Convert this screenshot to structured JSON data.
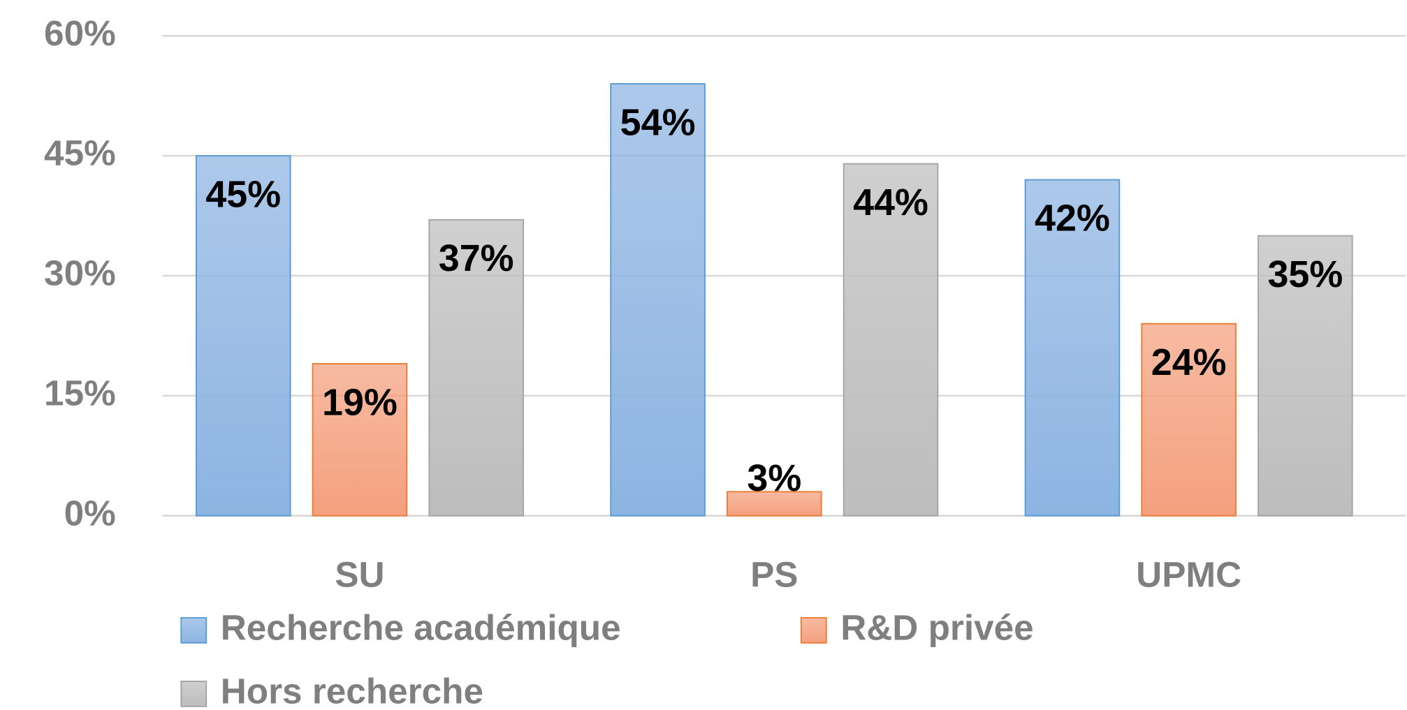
{
  "chart_data": {
    "type": "bar",
    "categories": [
      "SU",
      "PS",
      "UPMC"
    ],
    "series": [
      {
        "name": "Recherche académique",
        "color": "#8db4e2",
        "stroke": "#5b9bd5",
        "values": [
          45,
          54,
          42
        ],
        "value_labels": [
          "45%",
          "54%",
          "42%"
        ]
      },
      {
        "name": "R&D privée",
        "color": "#f4a07e",
        "stroke": "#ed7d31",
        "values": [
          19,
          3,
          24
        ],
        "value_labels": [
          "19%",
          "3%",
          "24%"
        ]
      },
      {
        "name": "Hors recherche",
        "color": "#bdbdbd",
        "stroke": "#a5a5a5",
        "values": [
          37,
          44,
          35
        ],
        "value_labels": [
          "37%",
          "44%",
          "35%"
        ]
      }
    ],
    "ylim": [
      0,
      60
    ],
    "yticks": [
      {
        "value": 0,
        "label": "0%"
      },
      {
        "value": 15,
        "label": "15%"
      },
      {
        "value": 30,
        "label": "30%"
      },
      {
        "value": 45,
        "label": "45%"
      },
      {
        "value": 60,
        "label": "60%"
      }
    ],
    "grid": true,
    "legend": "bottom"
  }
}
